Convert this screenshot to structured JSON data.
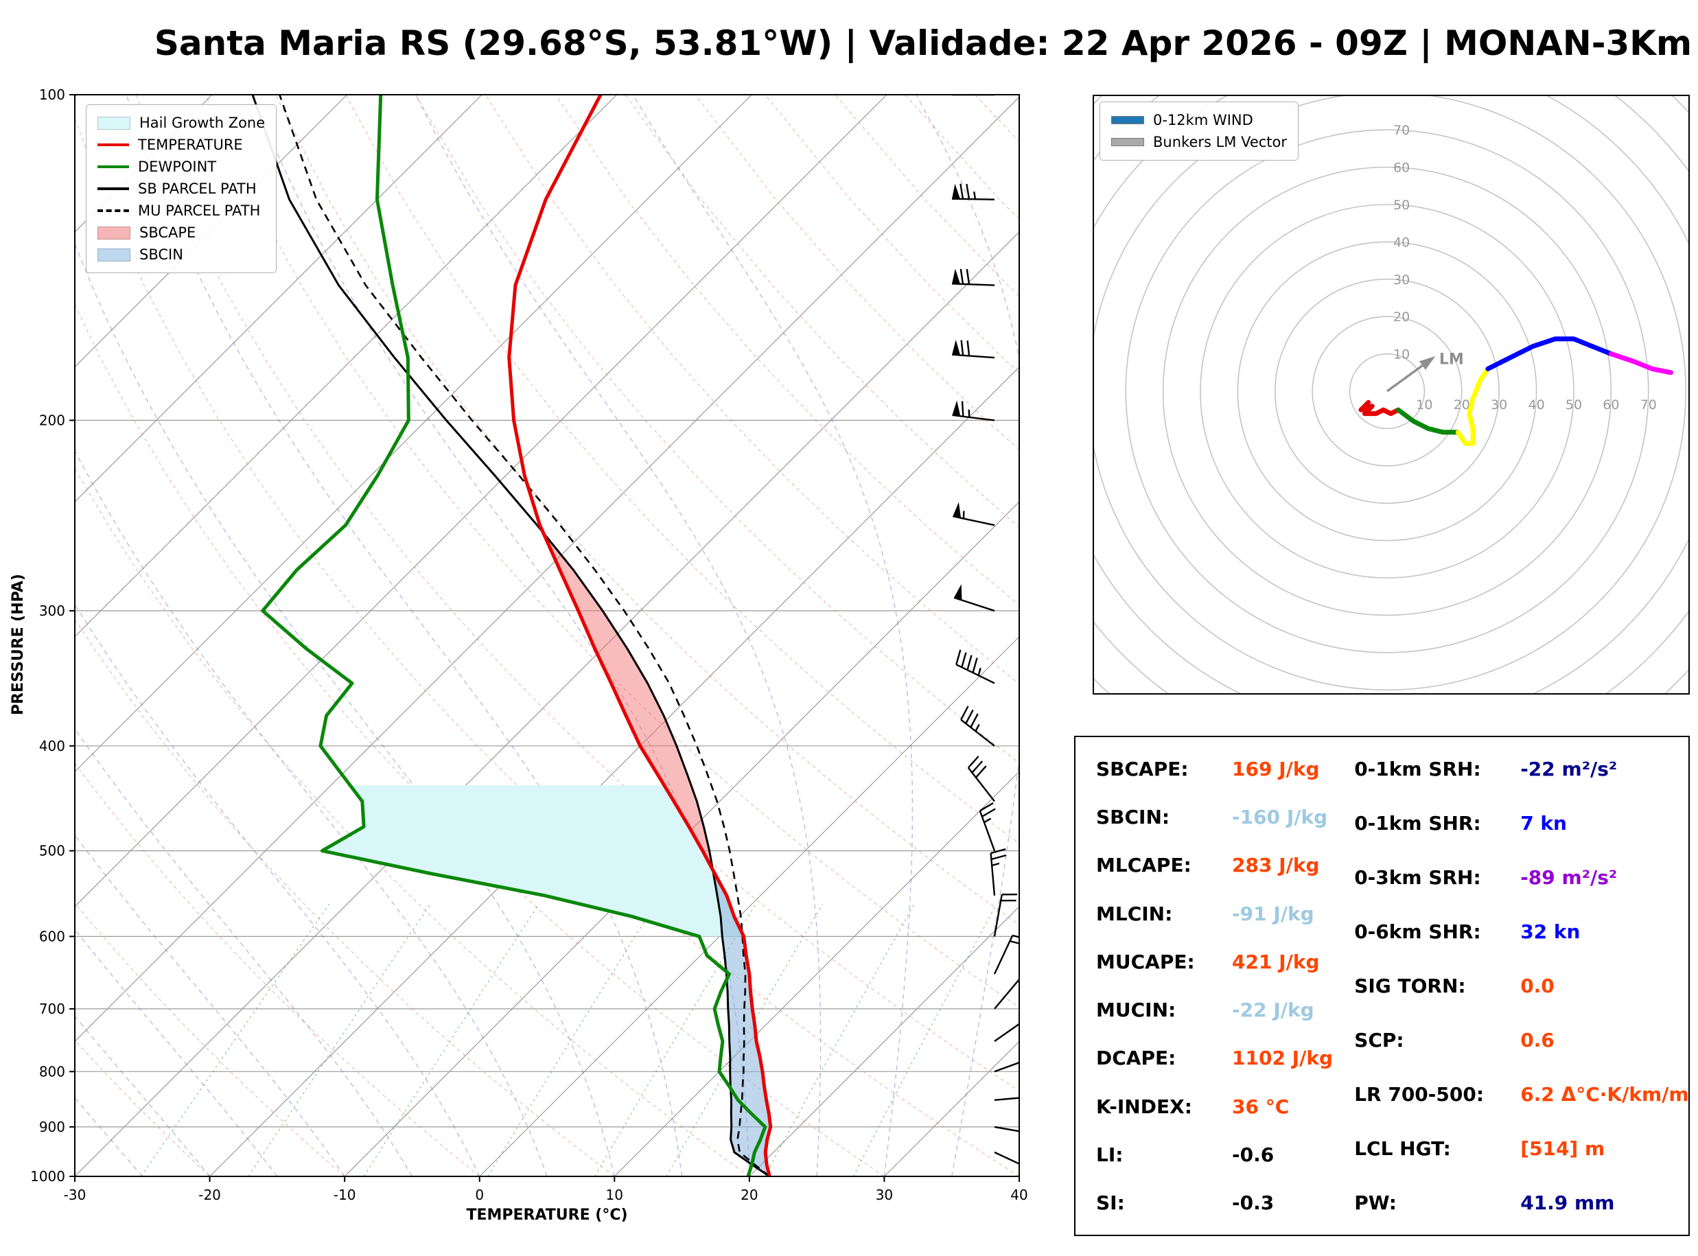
{
  "title": "Santa Maria RS (29.68°S, 53.81°W) | Validade: 22 Apr 2026 - 09Z | MONAN-3Km",
  "skewt": {
    "ylabel": "PRESSURE (HPA)",
    "xlabel": "TEMPERATURE (°C)",
    "x_ticks": [
      -30,
      -20,
      -10,
      0,
      10,
      20,
      30,
      40
    ],
    "y_ticks": [
      100,
      200,
      300,
      400,
      500,
      600,
      700,
      800,
      900,
      1000
    ],
    "legend": [
      {
        "label": "Hail Growth Zone",
        "type": "patch",
        "color": "#d9f6f8"
      },
      {
        "label": "TEMPERATURE",
        "type": "line",
        "color": "#e60000"
      },
      {
        "label": "DEWPOINT",
        "type": "line",
        "color": "#0a870a"
      },
      {
        "label": "SB PARCEL PATH",
        "type": "line",
        "color": "#000000"
      },
      {
        "label": "MU PARCEL PATH",
        "type": "dashed",
        "color": "#000000"
      },
      {
        "label": "SBCAPE",
        "type": "patch",
        "color": "#f5b4b6"
      },
      {
        "label": "SBCIN",
        "type": "patch",
        "color": "#bdd7ee"
      }
    ]
  },
  "hodograph": {
    "legend": [
      {
        "label": "0-12km WIND",
        "color": "#1f77b4"
      },
      {
        "label": "Bunkers LM Vector",
        "color": "#aaaaaa"
      }
    ],
    "ring_labels": [
      10,
      20,
      30,
      40,
      50,
      60,
      70
    ],
    "lm_label": "LM"
  },
  "stats": {
    "left": [
      {
        "label": "SBCAPE:",
        "value": "169 J/kg",
        "color": "#ff4500"
      },
      {
        "label": "SBCIN:",
        "value": "-160 J/kg",
        "color": "#9ecae1"
      },
      {
        "label": "MLCAPE:",
        "value": "283 J/kg",
        "color": "#ff4500"
      },
      {
        "label": "MLCIN:",
        "value": "-91 J/kg",
        "color": "#9ecae1"
      },
      {
        "label": "MUCAPE:",
        "value": "421 J/kg",
        "color": "#ff4500"
      },
      {
        "label": "MUCIN:",
        "value": "-22 J/kg",
        "color": "#9ecae1"
      },
      {
        "label": "DCAPE:",
        "value": "1102 J/kg",
        "color": "#ff4500"
      },
      {
        "label": "K-INDEX:",
        "value": "36 °C",
        "color": "#ff4500"
      },
      {
        "label": "LI:",
        "value": "-0.6",
        "color": "#000000"
      },
      {
        "label": "SI:",
        "value": "-0.3",
        "color": "#000000"
      }
    ],
    "right": [
      {
        "label": "0-1km SRH:",
        "value": "-22 m²/s²",
        "color": "#00008b"
      },
      {
        "label": "0-1km SHR:",
        "value": "7 kn",
        "color": "#0000ff"
      },
      {
        "label": "0-3km SRH:",
        "value": "-89 m²/s²",
        "color": "#9400d3"
      },
      {
        "label": "0-6km SHR:",
        "value": "32 kn",
        "color": "#0000ff"
      },
      {
        "label": "SIG TORN:",
        "value": "0.0",
        "color": "#ff4500"
      },
      {
        "label": "SCP:",
        "value": "0.6",
        "color": "#ff4500"
      },
      {
        "label": "LR 700-500:",
        "value": "6.2 Δ°C·K/km/m",
        "color": "#ff4500"
      },
      {
        "label": "LCL HGT:",
        "value": "[514] m",
        "color": "#ff4500"
      },
      {
        "label": "PW:",
        "value": "41.9 mm",
        "color": "#00008b"
      }
    ]
  },
  "chart_data": {
    "type": "line",
    "subtype": "skew_t_log_p_sounding",
    "title": "Santa Maria RS (29.68°S, 53.81°W) | Validade: 22 Apr 2026 - 09Z | MONAN-3Km",
    "xlabel": "TEMPERATURE (°C)",
    "ylabel": "PRESSURE (HPA)",
    "xlim": [
      -30,
      40
    ],
    "pressure_range": [
      100,
      1000
    ],
    "colors": {
      "temperature": "#e60000",
      "dewpoint": "#0a870a",
      "sb_parcel": "#000000",
      "mu_parcel": "#000000",
      "hail_fill": "#d9f6f8",
      "sbcin_fill": "rgba(140,180,220,0.55)",
      "sbcape_fill": "rgba(242,106,106,0.45)"
    },
    "pressure_hpa": [
      1000,
      975,
      950,
      925,
      900,
      875,
      850,
      825,
      800,
      775,
      750,
      725,
      700,
      675,
      650,
      625,
      600,
      575,
      550,
      525,
      500,
      475,
      450,
      425,
      400,
      375,
      350,
      325,
      300,
      275,
      250,
      225,
      200,
      175,
      150,
      125,
      100
    ],
    "temperature_c": [
      21.5,
      20.4,
      19.4,
      18.6,
      17.9,
      16.8,
      15.6,
      14.4,
      13.2,
      11.9,
      10.5,
      9.2,
      7.8,
      6.4,
      5.0,
      3.4,
      1.8,
      -0.4,
      -2.5,
      -5.0,
      -7.6,
      -10.4,
      -13.4,
      -16.6,
      -20.0,
      -23.3,
      -26.8,
      -30.6,
      -34.6,
      -39.0,
      -43.8,
      -48.6,
      -53.5,
      -58.5,
      -63.4,
      -67.5,
      -71.2
    ],
    "dewpoint_c": [
      19.9,
      19.3,
      18.6,
      18.1,
      17.5,
      15.5,
      13.5,
      11.8,
      10.0,
      9.0,
      8.0,
      6.5,
      5.0,
      4.2,
      3.5,
      0.5,
      -1.5,
      -8.0,
      -16.0,
      -26.0,
      -35.8,
      -34.5,
      -36.5,
      -40.0,
      -43.7,
      -45.5,
      -46.0,
      -52.0,
      -58.0,
      -58.5,
      -58.2,
      -59.5,
      -61.3,
      -66.0,
      -72.5,
      -80.0,
      -87.5
    ],
    "sb_parcel_c": [
      21.5,
      19.3,
      17.1,
      15.9,
      15.0,
      14.0,
      13.0,
      11.9,
      10.8,
      9.7,
      8.5,
      7.3,
      6.0,
      4.7,
      3.3,
      1.8,
      0.2,
      -1.4,
      -3.2,
      -5.1,
      -7.1,
      -9.3,
      -11.7,
      -14.4,
      -17.3,
      -20.5,
      -24.1,
      -28.2,
      -32.8,
      -38.0,
      -44.0,
      -50.8,
      -58.5,
      -67.0,
      -76.5,
      -86.5,
      -97.0
    ],
    "mu_parcel_c": [
      21.5,
      19.5,
      17.5,
      16.4,
      15.6,
      14.7,
      13.8,
      12.8,
      11.8,
      10.7,
      9.6,
      8.4,
      7.2,
      6.0,
      4.7,
      3.2,
      1.7,
      0.1,
      -1.7,
      -3.6,
      -5.6,
      -7.8,
      -10.2,
      -12.9,
      -15.8,
      -19.0,
      -22.5,
      -26.6,
      -31.2,
      -36.4,
      -42.3,
      -49.0,
      -56.6,
      -65.0,
      -74.5,
      -84.5,
      -95.0
    ],
    "shading": {
      "hail_zone_p": [
        600,
        435
      ],
      "sbcin_p": [
        1000,
        515
      ],
      "sbcape_p": [
        515,
        253
      ]
    },
    "wind_barbs": [
      {
        "p": 1000,
        "dir": 100,
        "spd": 7
      },
      {
        "p": 950,
        "dir": 115,
        "spd": 9
      },
      {
        "p": 900,
        "dir": 100,
        "spd": 11
      },
      {
        "p": 850,
        "dir": 85,
        "spd": 13
      },
      {
        "p": 800,
        "dir": 70,
        "spd": 15
      },
      {
        "p": 750,
        "dir": 55,
        "spd": 16
      },
      {
        "p": 700,
        "dir": 40,
        "spd": 18
      },
      {
        "p": 650,
        "dir": 25,
        "spd": 19
      },
      {
        "p": 600,
        "dir": 10,
        "spd": 21
      },
      {
        "p": 550,
        "dir": 355,
        "spd": 23
      },
      {
        "p": 500,
        "dir": 340,
        "spd": 26
      },
      {
        "p": 450,
        "dir": 322,
        "spd": 30
      },
      {
        "p": 400,
        "dir": 308,
        "spd": 36
      },
      {
        "p": 350,
        "dir": 296,
        "spd": 43
      },
      {
        "p": 300,
        "dir": 288,
        "spd": 50
      },
      {
        "p": 250,
        "dir": 282,
        "spd": 57
      },
      {
        "p": 200,
        "dir": 277,
        "spd": 64
      },
      {
        "p": 175,
        "dir": 274,
        "spd": 68
      },
      {
        "p": 150,
        "dir": 272,
        "spd": 71
      },
      {
        "p": 125,
        "dir": 271,
        "spd": 74
      },
      {
        "p": 100,
        "dir": 270,
        "spd": 76
      }
    ],
    "hodograph": {
      "units": "kn",
      "rings": [
        10,
        20,
        30,
        40,
        50,
        60,
        70
      ],
      "bunkers_lm_vector": [
        11,
        8
      ],
      "segments": [
        {
          "color": "#e60000",
          "points": [
            [
              -5,
              -3
            ],
            [
              -7,
              -5
            ],
            [
              -4,
              -4
            ],
            [
              -6,
              -6
            ],
            [
              -3,
              -6
            ],
            [
              -1,
              -5
            ],
            [
              1,
              -6
            ],
            [
              3,
              -5
            ]
          ]
        },
        {
          "color": "#0a870a",
          "points": [
            [
              3,
              -5
            ],
            [
              7,
              -8
            ],
            [
              11,
              -10
            ],
            [
              15,
              -11
            ],
            [
              19,
              -11
            ]
          ]
        },
        {
          "color": "#ffff00",
          "points": [
            [
              19,
              -11
            ],
            [
              21,
              -14
            ],
            [
              23,
              -14
            ],
            [
              23,
              -10
            ],
            [
              22,
              -6
            ],
            [
              23,
              -2
            ],
            [
              25,
              3
            ],
            [
              27,
              6
            ]
          ]
        },
        {
          "color": "#0000ff",
          "points": [
            [
              27,
              6
            ],
            [
              33,
              9
            ],
            [
              39,
              12
            ],
            [
              45,
              14
            ],
            [
              50,
              14
            ],
            [
              55,
              12
            ],
            [
              60,
              10
            ]
          ]
        },
        {
          "color": "#ff00ff",
          "points": [
            [
              60,
              10
            ],
            [
              66,
              8
            ],
            [
              71,
              6
            ],
            [
              76,
              5
            ]
          ]
        }
      ]
    }
  }
}
